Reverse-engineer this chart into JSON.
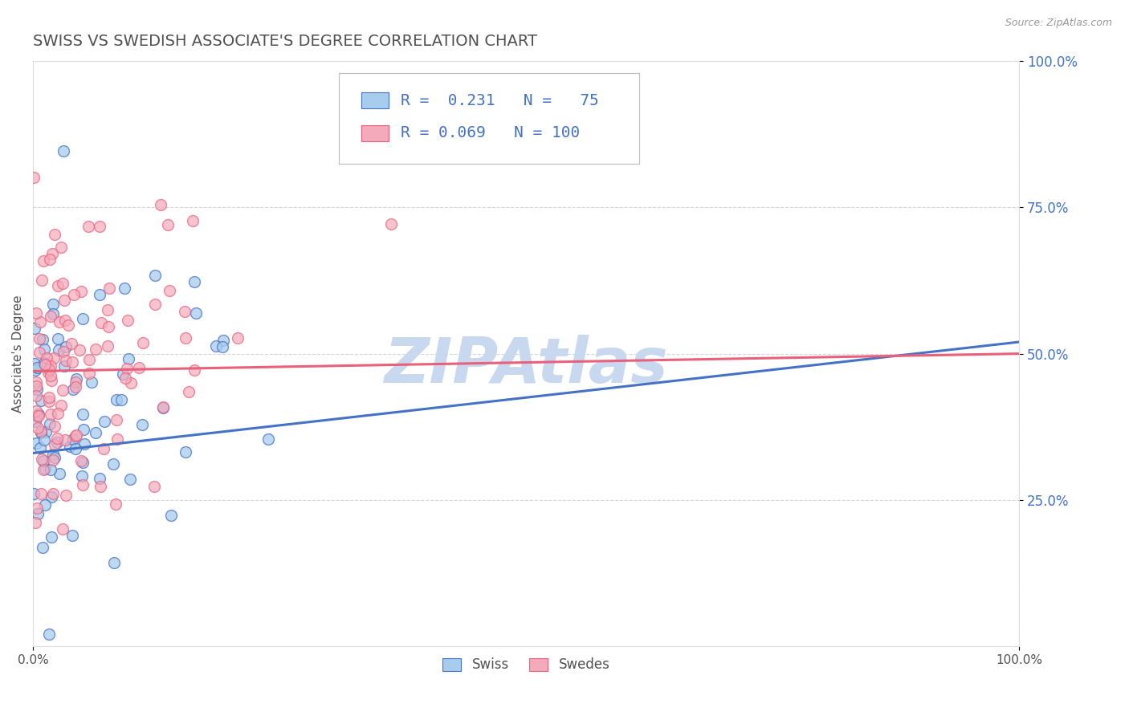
{
  "title": "SWISS VS SWEDISH ASSOCIATE'S DEGREE CORRELATION CHART",
  "source_text": "Source: ZipAtlas.com",
  "ylabel": "Associate's Degree",
  "xlim": [
    0.0,
    1.0
  ],
  "ylim": [
    0.0,
    1.0
  ],
  "swiss_color": "#A8CCEE",
  "swedes_color": "#F4AABB",
  "swiss_line_color": "#4472C4",
  "swedes_line_color": "#E8607A",
  "swiss_R": 0.231,
  "swiss_N": 75,
  "swedes_R": 0.069,
  "swedes_N": 100,
  "background_color": "#FFFFFF",
  "grid_color": "#BBBBBB",
  "title_color": "#505050",
  "title_fontsize": 14,
  "ytick_color": "#4472C4",
  "watermark_text": "ZIPAtlas",
  "watermark_color": "#C8D8EE"
}
